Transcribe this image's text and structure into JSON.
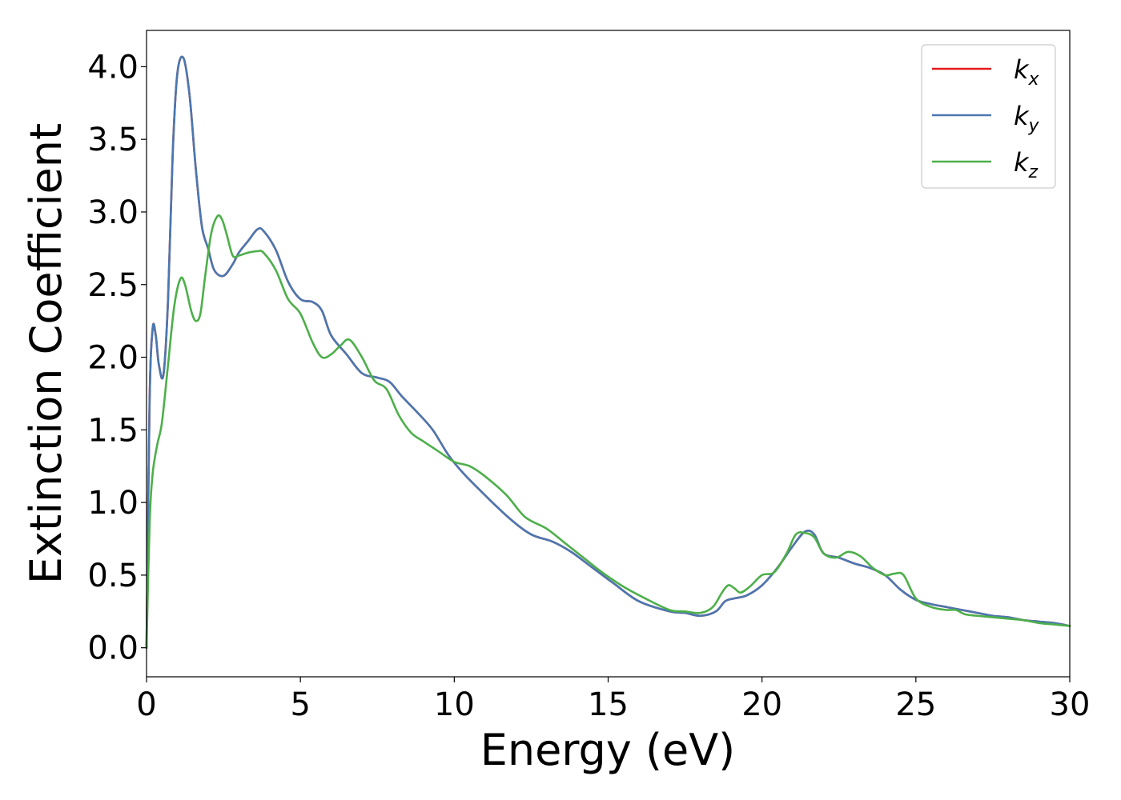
{
  "chart_data": {
    "type": "line",
    "title": "",
    "xlabel": "Energy (eV)",
    "ylabel": "Extinction Coefficient",
    "xlim": [
      0,
      30
    ],
    "ylim": [
      -0.2,
      4.25
    ],
    "xticks": [
      0,
      5,
      10,
      15,
      20,
      25,
      30
    ],
    "xtick_labels": [
      "0",
      "5",
      "10",
      "15",
      "20",
      "25",
      "30"
    ],
    "yticks": [
      0.0,
      0.5,
      1.0,
      1.5,
      2.0,
      2.5,
      3.0,
      3.5,
      4.0
    ],
    "ytick_labels": [
      "0.0",
      "0.5",
      "1.0",
      "1.5",
      "2.0",
      "2.5",
      "3.0",
      "3.5",
      "4.0"
    ],
    "grid": false,
    "legend_position": "top-right",
    "series": [
      {
        "name": "kx",
        "legend_base": "k",
        "legend_sub": "x",
        "color": "#e41a1c",
        "x": [
          0.0,
          0.1,
          0.2,
          0.3,
          0.4,
          0.55,
          0.7,
          0.85,
          1.0,
          1.2,
          1.4,
          1.6,
          1.8,
          2.0,
          2.2,
          2.5,
          2.8,
          3.0,
          3.3,
          3.6,
          3.8,
          4.2,
          4.6,
          5.0,
          5.4,
          5.7,
          6.0,
          6.5,
          7.0,
          7.5,
          7.9,
          8.3,
          8.8,
          9.3,
          9.8,
          10.3,
          11.0,
          11.8,
          12.5,
          13.2,
          13.8,
          14.5,
          15.2,
          16.0,
          17.0,
          17.5,
          18.0,
          18.5,
          18.8,
          19.1,
          19.5,
          20.0,
          20.5,
          21.0,
          21.4,
          21.7,
          22.0,
          22.5,
          23.0,
          23.5,
          24.0,
          24.5,
          25.0,
          25.5,
          26.0,
          26.5,
          27.0,
          27.5,
          28.0,
          28.5,
          29.0,
          29.5,
          30.0
        ],
        "y": [
          0.0,
          1.7,
          2.2,
          2.15,
          1.95,
          1.88,
          2.4,
          3.4,
          3.95,
          4.06,
          3.8,
          3.3,
          2.9,
          2.75,
          2.6,
          2.56,
          2.64,
          2.72,
          2.8,
          2.88,
          2.87,
          2.74,
          2.52,
          2.4,
          2.38,
          2.32,
          2.15,
          2.02,
          1.89,
          1.86,
          1.83,
          1.73,
          1.62,
          1.5,
          1.33,
          1.2,
          1.05,
          0.89,
          0.78,
          0.73,
          0.66,
          0.55,
          0.44,
          0.32,
          0.25,
          0.24,
          0.22,
          0.25,
          0.32,
          0.34,
          0.36,
          0.43,
          0.55,
          0.7,
          0.8,
          0.78,
          0.65,
          0.62,
          0.58,
          0.55,
          0.5,
          0.4,
          0.33,
          0.3,
          0.28,
          0.26,
          0.24,
          0.22,
          0.21,
          0.19,
          0.18,
          0.17,
          0.15
        ]
      },
      {
        "name": "ky",
        "legend_base": "k",
        "legend_sub": "y",
        "color": "#4a78b0",
        "x": [
          0.0,
          0.1,
          0.2,
          0.3,
          0.4,
          0.55,
          0.7,
          0.85,
          1.0,
          1.2,
          1.4,
          1.6,
          1.8,
          2.0,
          2.2,
          2.5,
          2.8,
          3.0,
          3.3,
          3.6,
          3.8,
          4.2,
          4.6,
          5.0,
          5.4,
          5.7,
          6.0,
          6.5,
          7.0,
          7.5,
          7.9,
          8.3,
          8.8,
          9.3,
          9.8,
          10.3,
          11.0,
          11.8,
          12.5,
          13.2,
          13.8,
          14.5,
          15.2,
          16.0,
          17.0,
          17.5,
          18.0,
          18.5,
          18.8,
          19.1,
          19.5,
          20.0,
          20.5,
          21.0,
          21.4,
          21.7,
          22.0,
          22.5,
          23.0,
          23.5,
          24.0,
          24.5,
          25.0,
          25.5,
          26.0,
          26.5,
          27.0,
          27.5,
          28.0,
          28.5,
          29.0,
          29.5,
          30.0
        ],
        "y": [
          0.0,
          1.7,
          2.2,
          2.15,
          1.95,
          1.88,
          2.4,
          3.4,
          3.95,
          4.06,
          3.8,
          3.3,
          2.9,
          2.75,
          2.6,
          2.56,
          2.64,
          2.72,
          2.8,
          2.88,
          2.87,
          2.74,
          2.52,
          2.4,
          2.38,
          2.32,
          2.15,
          2.02,
          1.89,
          1.86,
          1.83,
          1.73,
          1.62,
          1.5,
          1.33,
          1.2,
          1.05,
          0.89,
          0.78,
          0.73,
          0.66,
          0.55,
          0.44,
          0.32,
          0.25,
          0.24,
          0.22,
          0.25,
          0.32,
          0.34,
          0.36,
          0.43,
          0.55,
          0.7,
          0.8,
          0.78,
          0.65,
          0.62,
          0.58,
          0.55,
          0.5,
          0.4,
          0.33,
          0.3,
          0.28,
          0.26,
          0.24,
          0.22,
          0.21,
          0.19,
          0.18,
          0.17,
          0.15
        ]
      },
      {
        "name": "kz",
        "legend_base": "k",
        "legend_sub": "z",
        "color": "#4daf4a",
        "x": [
          0.0,
          0.1,
          0.2,
          0.35,
          0.5,
          0.7,
          0.9,
          1.1,
          1.25,
          1.45,
          1.6,
          1.75,
          1.9,
          2.1,
          2.3,
          2.45,
          2.6,
          2.8,
          3.0,
          3.3,
          3.6,
          3.8,
          4.2,
          4.6,
          5.0,
          5.4,
          5.7,
          6.0,
          6.3,
          6.6,
          7.0,
          7.4,
          7.8,
          8.2,
          8.6,
          9.0,
          9.5,
          10.0,
          10.5,
          11.0,
          11.7,
          12.3,
          13.0,
          13.6,
          14.2,
          14.8,
          15.5,
          16.2,
          17.0,
          17.5,
          18.0,
          18.4,
          18.7,
          18.9,
          19.1,
          19.3,
          19.6,
          20.0,
          20.4,
          20.8,
          21.1,
          21.4,
          21.7,
          22.0,
          22.4,
          22.8,
          23.2,
          23.6,
          24.0,
          24.3,
          24.6,
          25.0,
          25.5,
          26.0,
          26.3,
          26.6,
          27.0,
          27.5,
          28.0,
          28.5,
          29.0,
          29.5,
          30.0
        ],
        "y": [
          0.0,
          0.85,
          1.2,
          1.4,
          1.55,
          1.95,
          2.35,
          2.54,
          2.5,
          2.32,
          2.25,
          2.3,
          2.55,
          2.85,
          2.97,
          2.95,
          2.85,
          2.7,
          2.7,
          2.72,
          2.73,
          2.72,
          2.6,
          2.4,
          2.3,
          2.1,
          2.0,
          2.02,
          2.08,
          2.12,
          2.0,
          1.84,
          1.78,
          1.6,
          1.48,
          1.42,
          1.35,
          1.28,
          1.25,
          1.18,
          1.05,
          0.9,
          0.82,
          0.72,
          0.62,
          0.52,
          0.42,
          0.34,
          0.26,
          0.25,
          0.24,
          0.28,
          0.38,
          0.43,
          0.41,
          0.38,
          0.42,
          0.5,
          0.52,
          0.65,
          0.78,
          0.79,
          0.76,
          0.65,
          0.62,
          0.66,
          0.63,
          0.55,
          0.5,
          0.51,
          0.5,
          0.34,
          0.28,
          0.26,
          0.26,
          0.23,
          0.22,
          0.21,
          0.2,
          0.19,
          0.17,
          0.16,
          0.15
        ]
      }
    ]
  }
}
